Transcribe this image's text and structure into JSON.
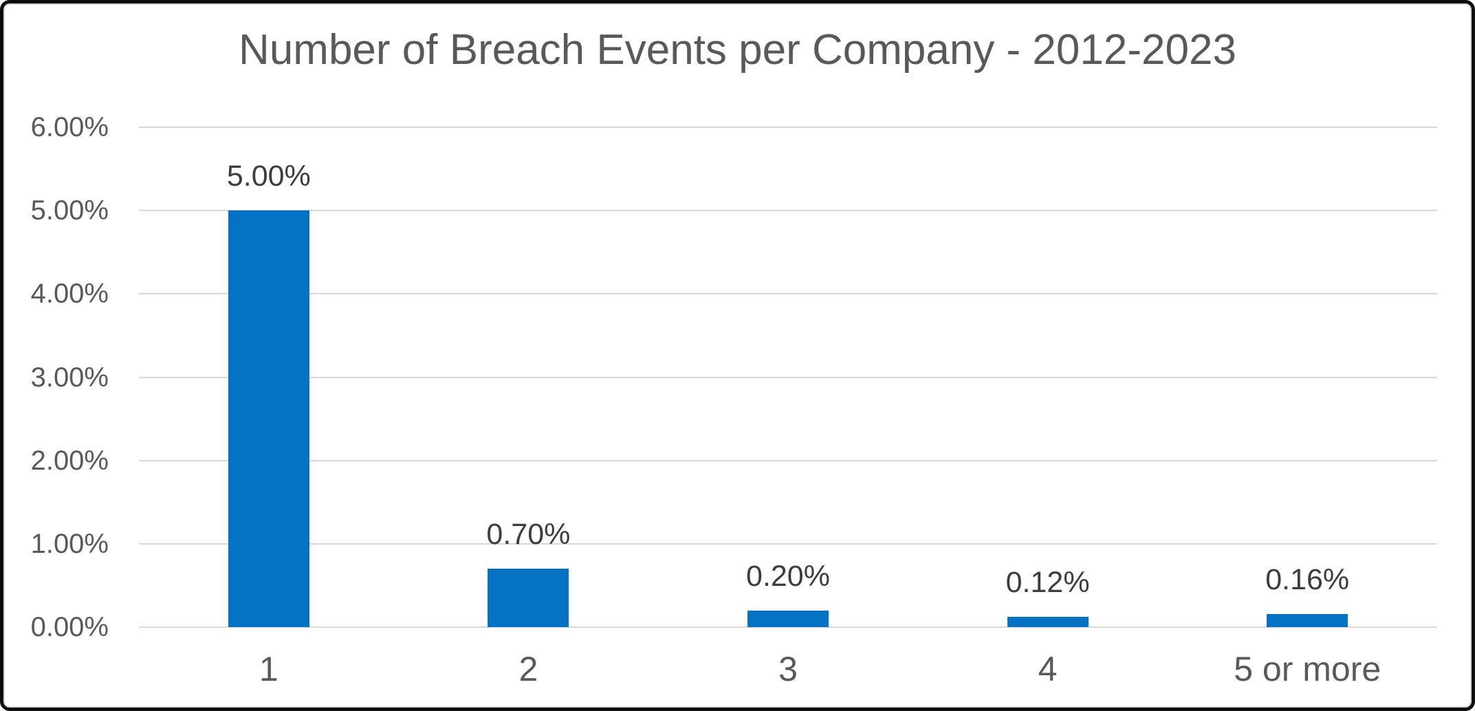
{
  "chart_data": {
    "type": "bar",
    "title": "Number of Breach Events per Company - 2012-2023",
    "categories": [
      "1",
      "2",
      "3",
      "4",
      "5 or more"
    ],
    "values": [
      5.0,
      0.7,
      0.2,
      0.12,
      0.16
    ],
    "data_labels": [
      "5.00%",
      "0.70%",
      "0.20%",
      "0.12%",
      "0.16%"
    ],
    "xlabel": "",
    "ylabel": "",
    "ylim": [
      0,
      6
    ],
    "y_tick_step": 1,
    "y_tick_labels": [
      "0.00%",
      "1.00%",
      "2.00%",
      "3.00%",
      "4.00%",
      "5.00%",
      "6.00%"
    ],
    "grid": true,
    "legend": "none",
    "colors": {
      "bar": "#0572c4",
      "gridline": "#d9d9d9",
      "axis_text": "#595959",
      "title_text": "#595959",
      "data_label_text": "#3d3d3d",
      "plot_background": "#ffffff",
      "frame_border": "#0d0d0d"
    }
  }
}
